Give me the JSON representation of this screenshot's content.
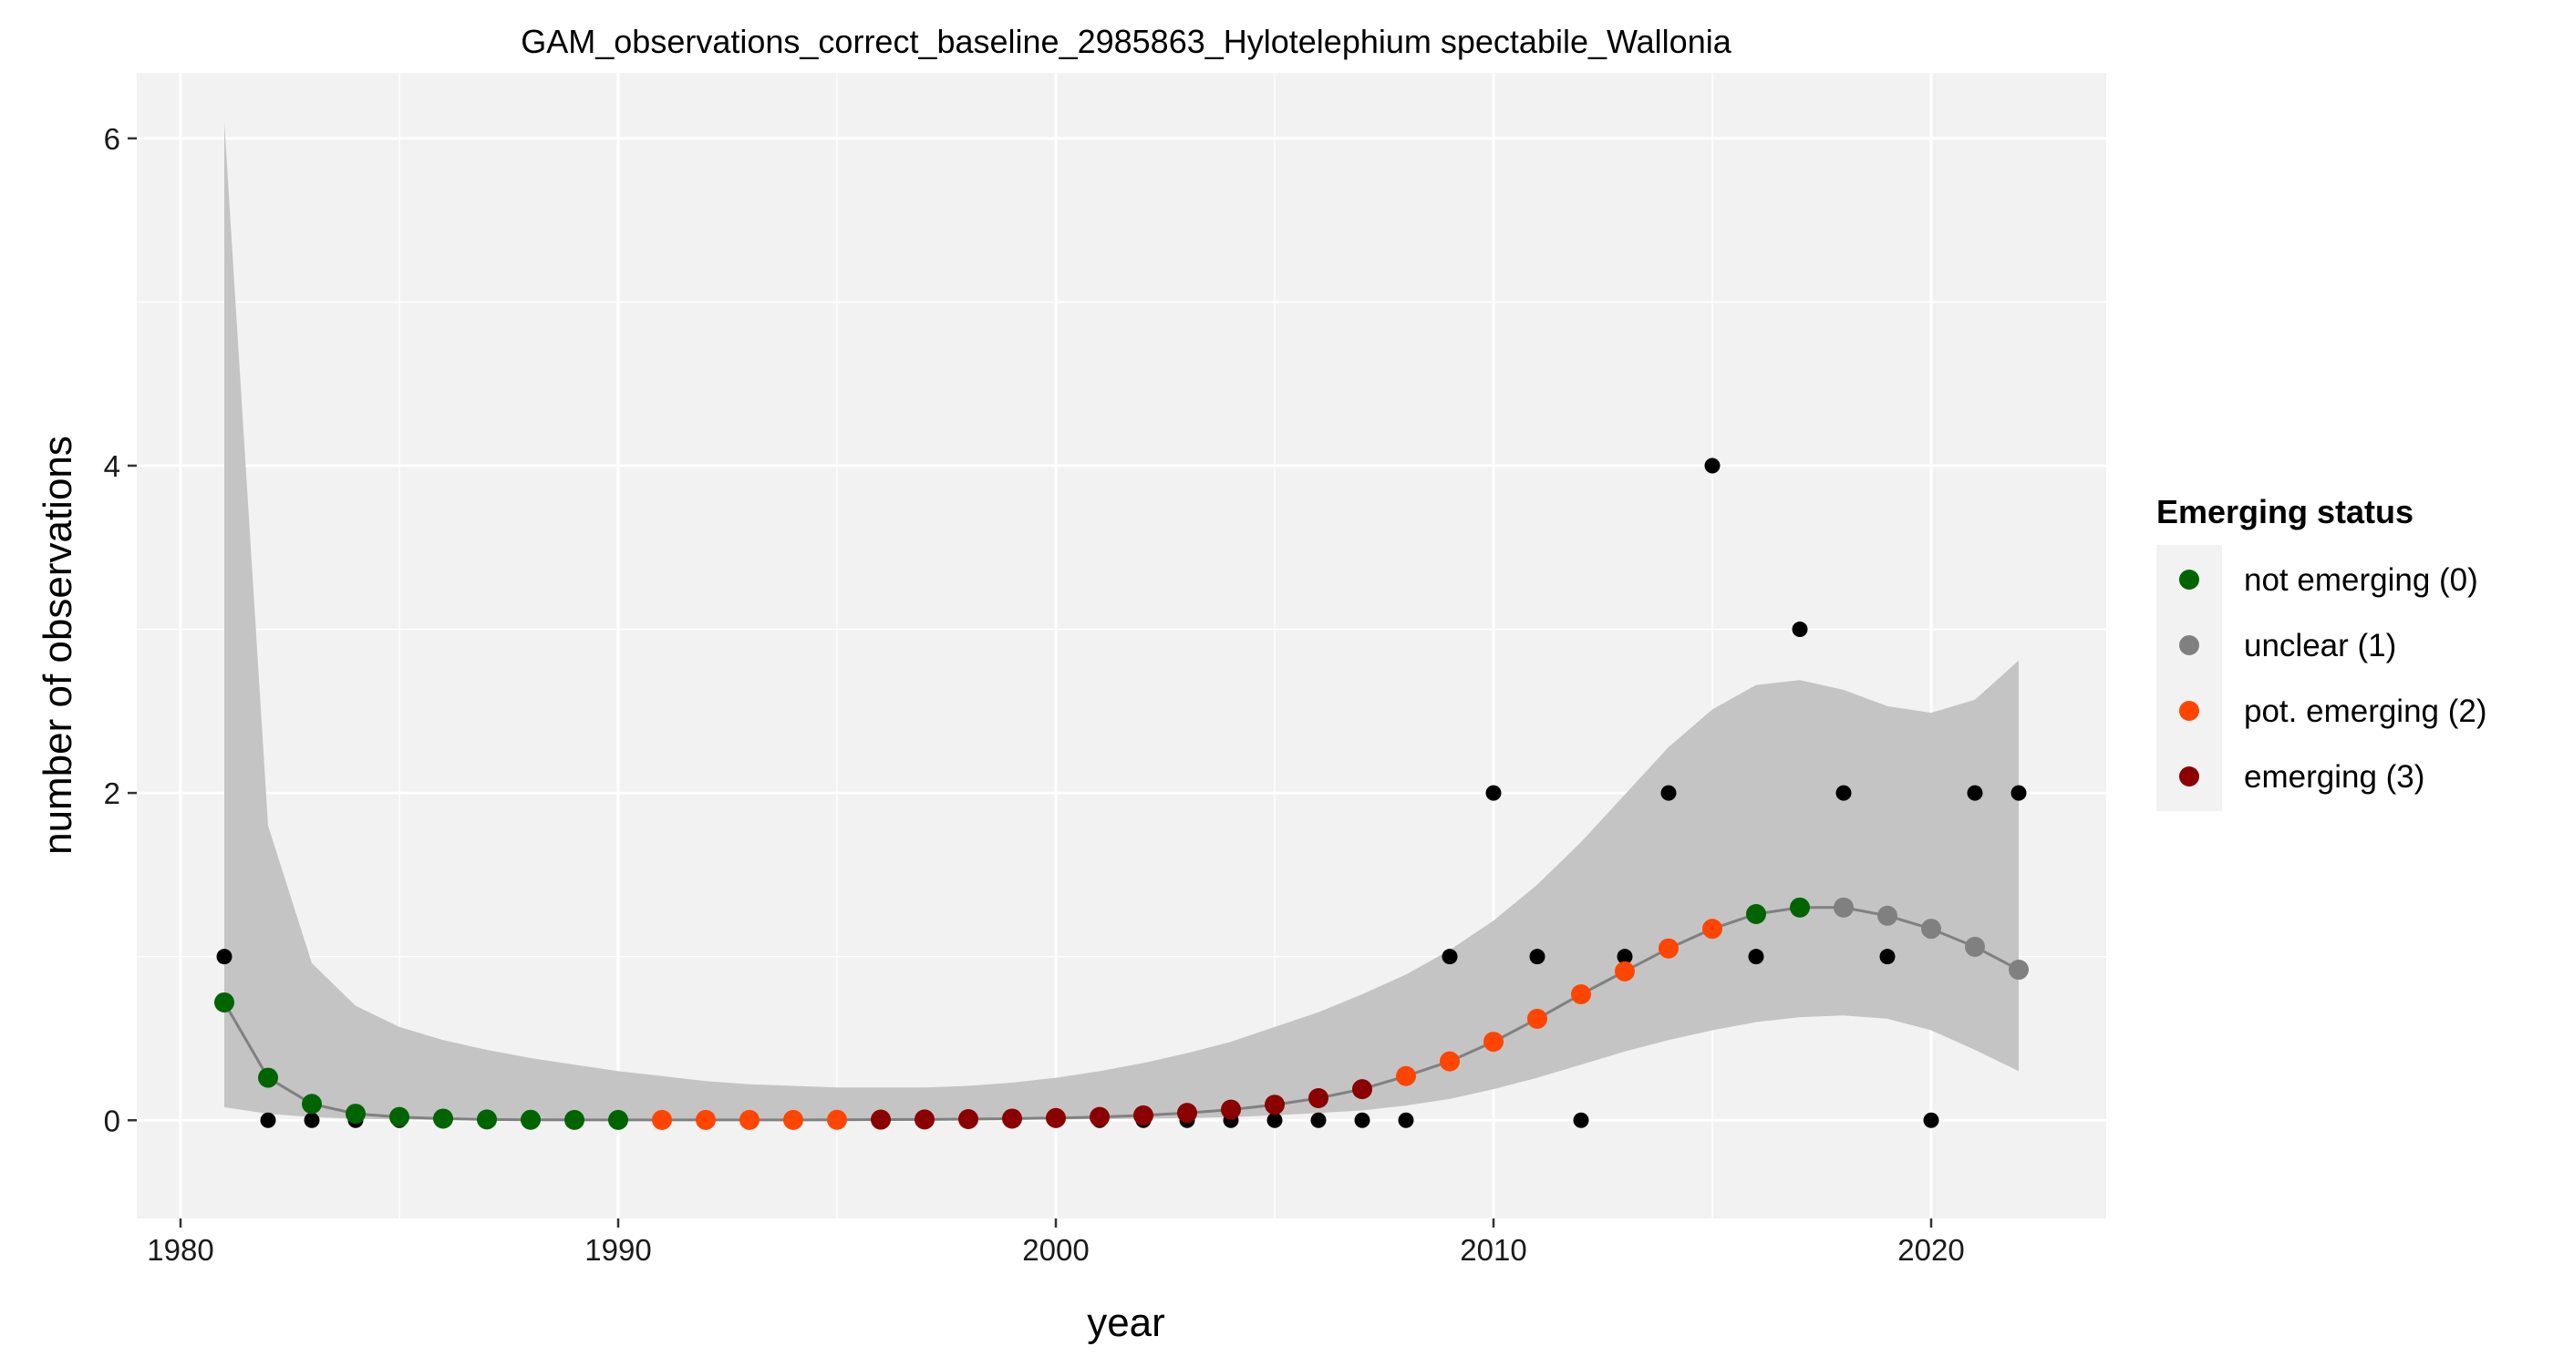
{
  "chart_data": {
    "type": "scatter",
    "title": "GAM_observations_correct_baseline_2985863_Hylotelephium spectabile_Wallonia",
    "xlabel": "year",
    "ylabel": "number of observations",
    "xlim": [
      1979,
      2024
    ],
    "ylim": [
      -0.6,
      6.4
    ],
    "x_ticks": [
      1980,
      1990,
      2000,
      2010,
      2020
    ],
    "y_ticks": [
      0,
      2,
      4,
      6
    ],
    "grid": true,
    "legend_placement": "right",
    "colors": {
      "panel_background": "#f2f2f2",
      "grid": "#ffffff",
      "ribbon": "#c4c4c4",
      "fit_line": "#808080",
      "observed_point": "#000000"
    },
    "observed": {
      "x": [
        1981,
        1982,
        1983,
        1984,
        1985,
        1986,
        1987,
        1988,
        1989,
        1990,
        1991,
        1992,
        1993,
        1994,
        1995,
        1996,
        1997,
        1998,
        1999,
        2000,
        2001,
        2002,
        2003,
        2004,
        2005,
        2006,
        2007,
        2008,
        2009,
        2010,
        2011,
        2012,
        2013,
        2014,
        2015,
        2016,
        2017,
        2018,
        2019,
        2020,
        2021,
        2022
      ],
      "y": [
        1,
        0,
        0,
        0,
        0,
        0,
        0,
        0,
        0,
        0,
        0,
        0,
        0,
        0,
        0,
        0,
        0,
        0,
        0,
        0,
        0,
        0,
        0,
        0,
        0,
        0,
        0,
        0,
        1,
        2,
        1,
        0,
        1,
        2,
        4,
        1,
        3,
        2,
        1,
        0,
        2,
        2
      ]
    },
    "fit": {
      "x": [
        1981,
        1982,
        1983,
        1984,
        1985,
        1986,
        1987,
        1988,
        1989,
        1990,
        1991,
        1992,
        1993,
        1994,
        1995,
        1996,
        1997,
        1998,
        1999,
        2000,
        2001,
        2002,
        2003,
        2004,
        2005,
        2006,
        2007,
        2008,
        2009,
        2010,
        2011,
        2012,
        2013,
        2014,
        2015,
        2016,
        2017,
        2018,
        2019,
        2020,
        2021,
        2022
      ],
      "y": [
        0.72,
        0.26,
        0.1,
        0.04,
        0.02,
        0.01,
        0.005,
        0.003,
        0.002,
        0.002,
        0.002,
        0.002,
        0.002,
        0.002,
        0.003,
        0.004,
        0.005,
        0.007,
        0.01,
        0.014,
        0.02,
        0.03,
        0.045,
        0.065,
        0.095,
        0.135,
        0.19,
        0.27,
        0.36,
        0.48,
        0.62,
        0.77,
        0.91,
        1.05,
        1.17,
        1.26,
        1.3,
        1.3,
        1.25,
        1.17,
        1.06,
        0.92
      ],
      "lower": [
        0.08,
        0.04,
        0.02,
        0.01,
        0.005,
        0.002,
        0.001,
        0.001,
        0.001,
        0.001,
        0.001,
        0.001,
        0.001,
        0.001,
        0.001,
        0.002,
        0.002,
        0.003,
        0.004,
        0.005,
        0.007,
        0.01,
        0.014,
        0.02,
        0.03,
        0.045,
        0.06,
        0.09,
        0.13,
        0.19,
        0.26,
        0.34,
        0.42,
        0.49,
        0.55,
        0.6,
        0.63,
        0.64,
        0.62,
        0.55,
        0.43,
        0.3
      ],
      "upper": [
        6.1,
        1.8,
        0.96,
        0.7,
        0.57,
        0.49,
        0.43,
        0.38,
        0.34,
        0.3,
        0.27,
        0.24,
        0.22,
        0.21,
        0.2,
        0.2,
        0.2,
        0.21,
        0.23,
        0.26,
        0.3,
        0.35,
        0.41,
        0.48,
        0.57,
        0.66,
        0.77,
        0.89,
        1.04,
        1.22,
        1.44,
        1.7,
        1.99,
        2.28,
        2.51,
        2.66,
        2.69,
        2.63,
        2.53,
        2.49,
        2.57,
        2.81
      ],
      "status": [
        0,
        0,
        0,
        0,
        0,
        0,
        0,
        0,
        0,
        0,
        2,
        2,
        2,
        2,
        2,
        3,
        3,
        3,
        3,
        3,
        3,
        3,
        3,
        3,
        3,
        3,
        3,
        2,
        2,
        2,
        2,
        2,
        2,
        2,
        2,
        0,
        0,
        1,
        1,
        1,
        1,
        1
      ]
    },
    "legend": {
      "title": "Emerging status",
      "entries": [
        {
          "label": "not emerging (0)",
          "color": "#006400"
        },
        {
          "label": "unclear (1)",
          "color": "#808080"
        },
        {
          "label": "pot. emerging (2)",
          "color": "#ff4500"
        },
        {
          "label": "emerging (3)",
          "color": "#8b0000"
        }
      ]
    }
  }
}
